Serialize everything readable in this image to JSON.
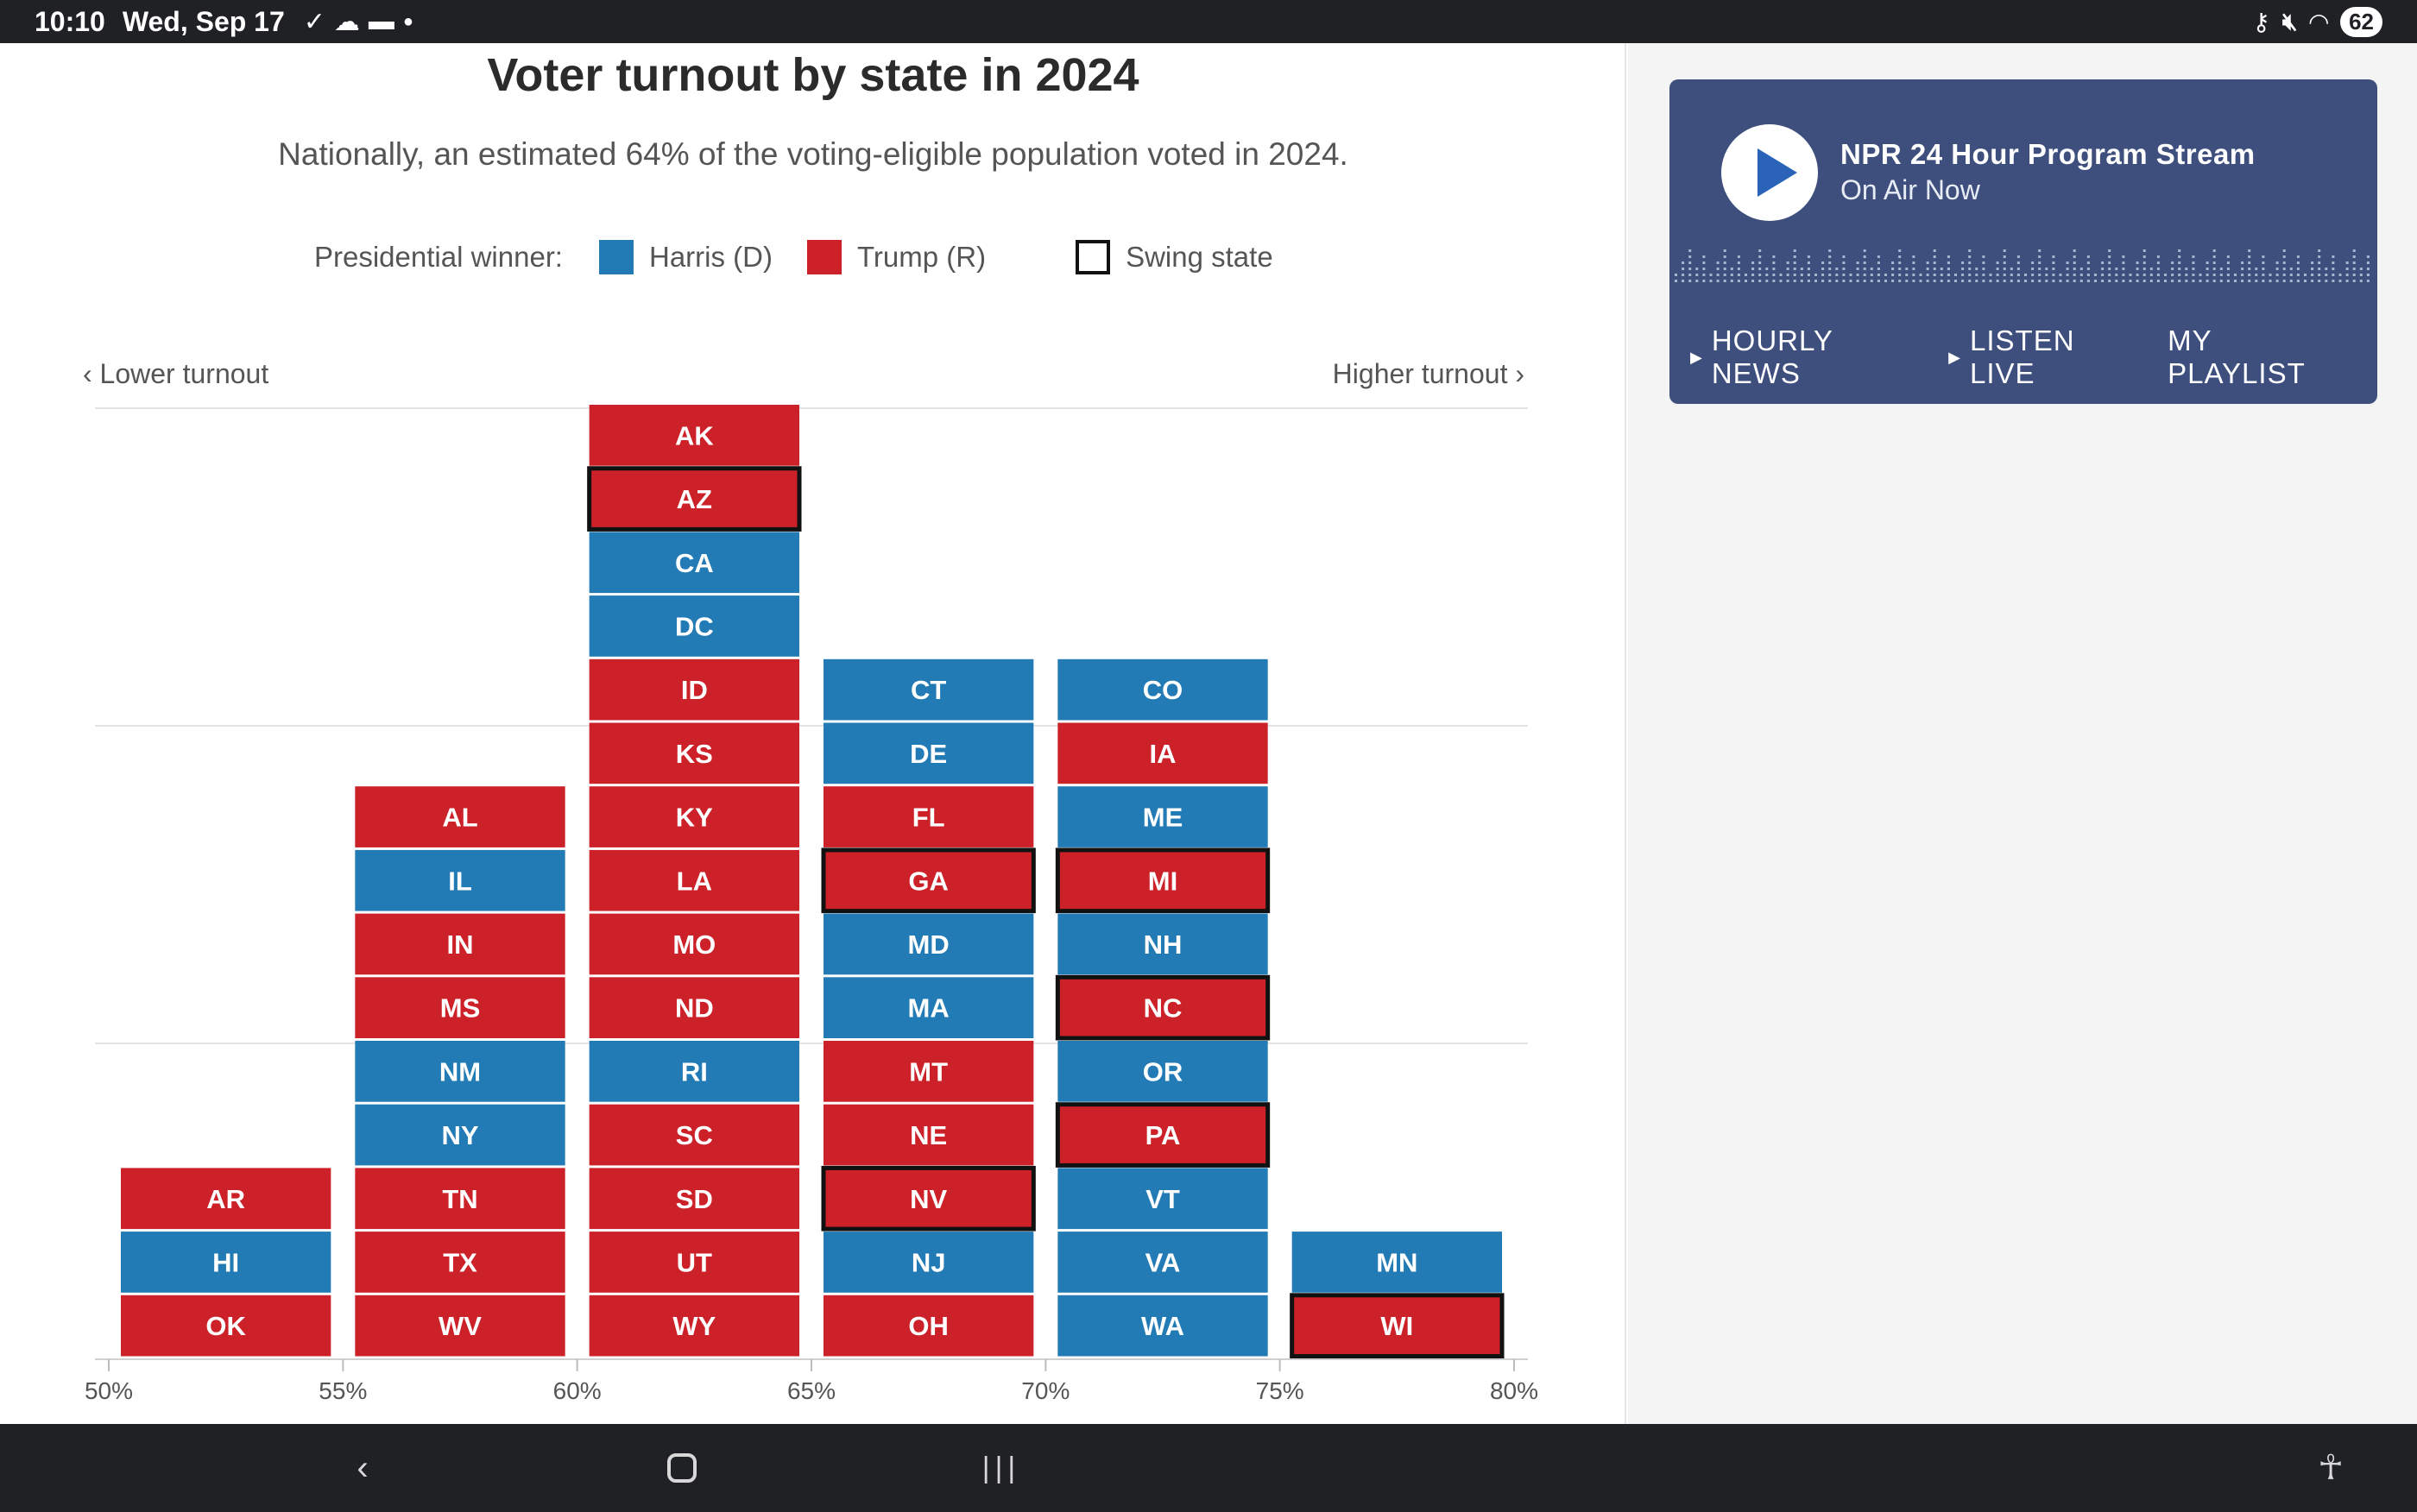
{
  "status_bar": {
    "time": "10:10",
    "date": "Wed, Sep 17",
    "battery": "62",
    "left_icons": [
      "location-check-icon",
      "cloud-sync-icon",
      "folder-icon",
      "dot-icon"
    ],
    "right_icons": [
      "key-icon",
      "mute-icon",
      "wifi-icon"
    ]
  },
  "chart": {
    "title": "Voter turnout by state in 2024",
    "subtitle": "Nationally, an estimated 64% of the voting-eligible population voted in 2024.",
    "legend": {
      "title": "Presidential winner:",
      "harris": "Harris (D)",
      "trump": "Trump (R)",
      "swing": "Swing state"
    },
    "lower_label": "‹ Lower turnout",
    "higher_label": "Higher turnout ›"
  },
  "chart_data": {
    "type": "bar",
    "description_axis": "turnout bins",
    "x_ticks": [
      "50%",
      "55%",
      "60%",
      "65%",
      "70%",
      "75%",
      "80%"
    ],
    "colors": {
      "harris": "#237bb5",
      "trump": "#cc2128",
      "swing_border": "#111111"
    },
    "bins": [
      {
        "range": "50%-55%",
        "states": [
          {
            "abbr": "OK",
            "winner": "R",
            "swing": false
          },
          {
            "abbr": "HI",
            "winner": "D",
            "swing": false
          },
          {
            "abbr": "AR",
            "winner": "R",
            "swing": false
          }
        ]
      },
      {
        "range": "55%-60%",
        "states": [
          {
            "abbr": "WV",
            "winner": "R",
            "swing": false
          },
          {
            "abbr": "TX",
            "winner": "R",
            "swing": false
          },
          {
            "abbr": "TN",
            "winner": "R",
            "swing": false
          },
          {
            "abbr": "NY",
            "winner": "D",
            "swing": false
          },
          {
            "abbr": "NM",
            "winner": "D",
            "swing": false
          },
          {
            "abbr": "MS",
            "winner": "R",
            "swing": false
          },
          {
            "abbr": "IN",
            "winner": "R",
            "swing": false
          },
          {
            "abbr": "IL",
            "winner": "D",
            "swing": false
          },
          {
            "abbr": "AL",
            "winner": "R",
            "swing": false
          }
        ]
      },
      {
        "range": "60%-65%",
        "states": [
          {
            "abbr": "WY",
            "winner": "R",
            "swing": false
          },
          {
            "abbr": "UT",
            "winner": "R",
            "swing": false
          },
          {
            "abbr": "SD",
            "winner": "R",
            "swing": false
          },
          {
            "abbr": "SC",
            "winner": "R",
            "swing": false
          },
          {
            "abbr": "RI",
            "winner": "D",
            "swing": false
          },
          {
            "abbr": "ND",
            "winner": "R",
            "swing": false
          },
          {
            "abbr": "MO",
            "winner": "R",
            "swing": false
          },
          {
            "abbr": "LA",
            "winner": "R",
            "swing": false
          },
          {
            "abbr": "KY",
            "winner": "R",
            "swing": false
          },
          {
            "abbr": "KS",
            "winner": "R",
            "swing": false
          },
          {
            "abbr": "ID",
            "winner": "R",
            "swing": false
          },
          {
            "abbr": "DC",
            "winner": "D",
            "swing": false
          },
          {
            "abbr": "CA",
            "winner": "D",
            "swing": false
          },
          {
            "abbr": "AZ",
            "winner": "R",
            "swing": true
          },
          {
            "abbr": "AK",
            "winner": "R",
            "swing": false
          }
        ]
      },
      {
        "range": "65%-70%",
        "states": [
          {
            "abbr": "OH",
            "winner": "R",
            "swing": false
          },
          {
            "abbr": "NJ",
            "winner": "D",
            "swing": false
          },
          {
            "abbr": "NV",
            "winner": "R",
            "swing": true
          },
          {
            "abbr": "NE",
            "winner": "R",
            "swing": false
          },
          {
            "abbr": "MT",
            "winner": "R",
            "swing": false
          },
          {
            "abbr": "MA",
            "winner": "D",
            "swing": false
          },
          {
            "abbr": "MD",
            "winner": "D",
            "swing": false
          },
          {
            "abbr": "GA",
            "winner": "R",
            "swing": true
          },
          {
            "abbr": "FL",
            "winner": "R",
            "swing": false
          },
          {
            "abbr": "DE",
            "winner": "D",
            "swing": false
          },
          {
            "abbr": "CT",
            "winner": "D",
            "swing": false
          }
        ]
      },
      {
        "range": "70%-75%",
        "states": [
          {
            "abbr": "WA",
            "winner": "D",
            "swing": false
          },
          {
            "abbr": "VA",
            "winner": "D",
            "swing": false
          },
          {
            "abbr": "VT",
            "winner": "D",
            "swing": false
          },
          {
            "abbr": "PA",
            "winner": "R",
            "swing": true
          },
          {
            "abbr": "OR",
            "winner": "D",
            "swing": false
          },
          {
            "abbr": "NC",
            "winner": "R",
            "swing": true
          },
          {
            "abbr": "NH",
            "winner": "D",
            "swing": false
          },
          {
            "abbr": "MI",
            "winner": "R",
            "swing": true
          },
          {
            "abbr": "ME",
            "winner": "D",
            "swing": false
          },
          {
            "abbr": "IA",
            "winner": "R",
            "swing": false
          },
          {
            "abbr": "CO",
            "winner": "D",
            "swing": false
          }
        ]
      },
      {
        "range": "75%-80%",
        "states": [
          {
            "abbr": "WI",
            "winner": "R",
            "swing": true
          },
          {
            "abbr": "MN",
            "winner": "D",
            "swing": false
          }
        ]
      }
    ],
    "grid": true
  },
  "player": {
    "title": "NPR 24 Hour Program Stream",
    "status": "On Air Now",
    "links": [
      "HOURLY NEWS",
      "LISTEN LIVE",
      "MY PLAYLIST"
    ]
  },
  "nav_bar": {
    "icons": [
      "back-icon",
      "home-icon",
      "recents-icon",
      "accessibility-icon"
    ]
  }
}
